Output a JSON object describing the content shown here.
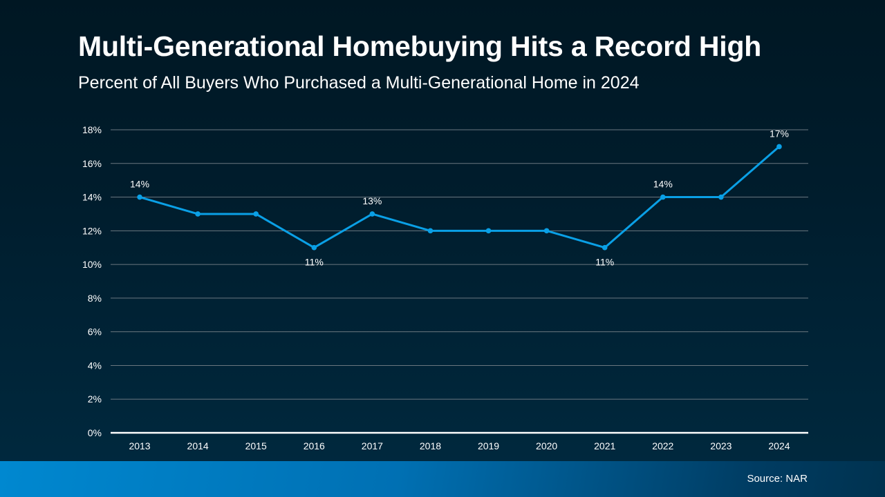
{
  "chart_data": {
    "type": "line",
    "title": "Multi-Generational Homebuying Hits a Record High",
    "subtitle": "Percent of All Buyers Who Purchased a Multi-Generational Home in 2024",
    "xlabel": "",
    "ylabel": "",
    "categories": [
      "2013",
      "2014",
      "2015",
      "2016",
      "2017",
      "2018",
      "2019",
      "2020",
      "2021",
      "2022",
      "2023",
      "2024"
    ],
    "values": [
      14,
      13,
      13,
      11,
      13,
      12,
      12,
      12,
      11,
      14,
      14,
      17
    ],
    "ylim": [
      0,
      18
    ],
    "yticks": [
      0,
      2,
      4,
      6,
      8,
      10,
      12,
      14,
      16,
      18
    ],
    "ytick_labels": [
      "0%",
      "2%",
      "4%",
      "6%",
      "8%",
      "10%",
      "12%",
      "14%",
      "16%",
      "18%"
    ],
    "data_labels": [
      {
        "category": "2013",
        "text": "14%",
        "placement": "above"
      },
      {
        "category": "2016",
        "text": "11%",
        "placement": "below"
      },
      {
        "category": "2017",
        "text": "13%",
        "placement": "above"
      },
      {
        "category": "2021",
        "text": "11%",
        "placement": "below"
      },
      {
        "category": "2022",
        "text": "14%",
        "placement": "above"
      },
      {
        "category": "2024",
        "text": "17%",
        "placement": "above"
      }
    ],
    "grid": true,
    "legend": "none",
    "line_color": "#0aa0e6"
  },
  "footer": {
    "source": "Source: NAR"
  }
}
